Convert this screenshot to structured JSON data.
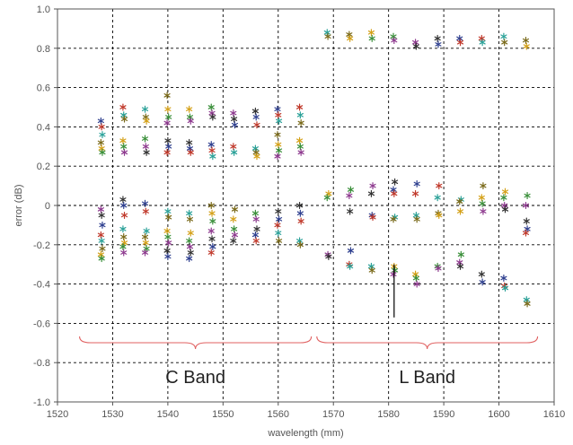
{
  "chart_data": {
    "type": "scatter",
    "title": "",
    "xlabel": "wavelength (mm)",
    "ylabel": "error (dB)",
    "xlim": [
      1520,
      1610
    ],
    "ylim": [
      -1.0,
      1.0
    ],
    "x_ticks": [
      "1520",
      "1530",
      "1540",
      "1550",
      "1560",
      "1570",
      "1580",
      "1590",
      "1600",
      "1610"
    ],
    "y_ticks": [
      "-1.0",
      "-0.8",
      "-0.6",
      "-0.4",
      "-0.2",
      "0",
      "0.2",
      "0.4",
      "0.6",
      "0.8",
      "1.0"
    ],
    "grid": true,
    "grid_style": "dashed",
    "marker": "asterisk",
    "colors": [
      "#2e3f8f",
      "#c0392b",
      "#2aa198",
      "#7a6a1a",
      "#d4a017",
      "#3a8f3a",
      "#8e3a8f",
      "#333333"
    ],
    "bands": [
      {
        "label": "C Band",
        "x_start": 1524,
        "x_end": 1566
      },
      {
        "label": "L Band",
        "x_start": 1567,
        "x_end": 1607
      }
    ],
    "brace_color": "#e06060",
    "annotation_line": {
      "x": 1581,
      "y_from": -0.3,
      "y_to": -0.57
    },
    "groups": [
      {
        "x": 1528,
        "ys": [
          0.43,
          0.4,
          0.36,
          0.32,
          0.29,
          0.27,
          -0.02,
          -0.05,
          -0.1,
          -0.15,
          -0.18,
          -0.22,
          -0.25,
          -0.27
        ]
      },
      {
        "x": 1532,
        "ys": [
          0.5,
          0.46,
          0.44,
          0.33,
          0.3,
          0.27,
          0.03,
          0.0,
          -0.05,
          -0.12,
          -0.16,
          -0.19,
          -0.21,
          -0.24
        ]
      },
      {
        "x": 1536,
        "ys": [
          0.49,
          0.45,
          0.43,
          0.34,
          0.3,
          0.27,
          0.01,
          -0.03,
          -0.13,
          -0.16,
          -0.19,
          -0.22,
          -0.24
        ]
      },
      {
        "x": 1540,
        "ys": [
          0.56,
          0.49,
          0.45,
          0.42,
          0.33,
          0.3,
          0.27,
          -0.03,
          -0.06,
          -0.13,
          -0.16,
          -0.19,
          -0.23,
          -0.26
        ]
      },
      {
        "x": 1544,
        "ys": [
          0.49,
          0.45,
          0.43,
          0.32,
          0.29,
          0.27,
          -0.04,
          -0.07,
          -0.14,
          -0.18,
          -0.21,
          -0.24,
          -0.27
        ]
      },
      {
        "x": 1548,
        "ys": [
          0.5,
          0.47,
          0.45,
          0.31,
          0.28,
          0.25,
          0.0,
          -0.04,
          -0.08,
          -0.13,
          -0.17,
          -0.21,
          -0.24
        ]
      },
      {
        "x": 1552,
        "ys": [
          0.47,
          0.44,
          0.41,
          0.3,
          0.27,
          -0.02,
          -0.07,
          -0.12,
          -0.15,
          -0.18
        ]
      },
      {
        "x": 1556,
        "ys": [
          0.48,
          0.45,
          0.41,
          0.29,
          0.27,
          0.25,
          -0.04,
          -0.07,
          -0.12,
          -0.15,
          -0.18
        ]
      },
      {
        "x": 1560,
        "ys": [
          0.49,
          0.46,
          0.43,
          0.36,
          0.31,
          0.28,
          0.25,
          -0.03,
          -0.07,
          -0.1,
          -0.14,
          -0.18
        ]
      },
      {
        "x": 1564,
        "ys": [
          0.5,
          0.46,
          0.42,
          0.33,
          0.3,
          0.27,
          0.0,
          -0.04,
          -0.08,
          -0.18,
          -0.2
        ]
      },
      {
        "x": 1569,
        "ys": [
          0.88,
          0.86,
          0.06,
          0.04,
          -0.25,
          -0.26
        ]
      },
      {
        "x": 1573,
        "ys": [
          0.87,
          0.85,
          0.08,
          0.05,
          -0.03,
          -0.23,
          -0.3,
          -0.31
        ]
      },
      {
        "x": 1577,
        "ys": [
          0.88,
          0.85,
          0.1,
          0.06,
          -0.05,
          -0.06,
          -0.31,
          -0.33
        ]
      },
      {
        "x": 1581,
        "ys": [
          0.86,
          0.84,
          0.12,
          0.08,
          0.06,
          -0.06,
          -0.07,
          -0.31,
          -0.33,
          -0.35
        ]
      },
      {
        "x": 1585,
        "ys": [
          0.83,
          0.81,
          0.11,
          0.06,
          -0.05,
          -0.07,
          -0.35,
          -0.37,
          -0.4
        ]
      },
      {
        "x": 1589,
        "ys": [
          0.85,
          0.82,
          0.1,
          0.04,
          -0.04,
          -0.05,
          -0.31,
          -0.32
        ]
      },
      {
        "x": 1593,
        "ys": [
          0.85,
          0.83,
          0.03,
          0.02,
          -0.03,
          -0.25,
          -0.29,
          -0.31
        ]
      },
      {
        "x": 1597,
        "ys": [
          0.85,
          0.83,
          0.1,
          0.04,
          0.01,
          -0.03,
          -0.35,
          -0.39
        ]
      },
      {
        "x": 1601,
        "ys": [
          0.86,
          0.83,
          0.07,
          0.04,
          0.0,
          -0.02,
          -0.37,
          -0.41,
          -0.42
        ]
      },
      {
        "x": 1605,
        "ys": [
          0.84,
          0.81,
          0.05,
          0.0,
          -0.08,
          -0.12,
          -0.14,
          -0.48,
          -0.5
        ]
      }
    ]
  }
}
